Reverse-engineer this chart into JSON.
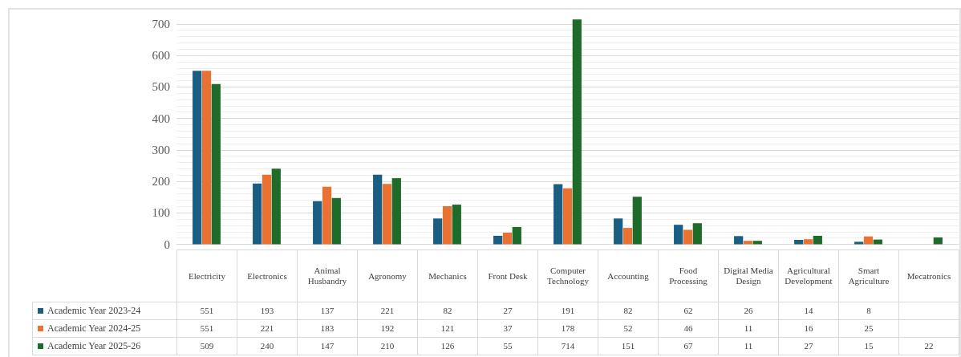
{
  "chart_data": {
    "type": "bar",
    "categories": [
      "Electricity",
      "Electronics",
      "Animal Husbandry",
      "Agronomy",
      "Mechanics",
      "Front Desk",
      "Computer Technology",
      "Accounting",
      "Food Processing",
      "Digital Media Design",
      "Agricultural Development",
      "Smart Agriculture",
      "Mecatronics"
    ],
    "series": [
      {
        "name": "Academic Year 2023-24",
        "color": "#1b5e84",
        "values": [
          551,
          193,
          137,
          221,
          82,
          27,
          191,
          82,
          62,
          26,
          14,
          8,
          null
        ]
      },
      {
        "name": "Academic Year 2024-25",
        "color": "#e97132",
        "values": [
          551,
          221,
          183,
          192,
          121,
          37,
          178,
          52,
          46,
          11,
          16,
          25,
          null
        ]
      },
      {
        "name": "Academic Year 2025-26",
        "color": "#1e6b2a",
        "values": [
          509,
          240,
          147,
          210,
          126,
          55,
          714,
          151,
          67,
          11,
          27,
          15,
          22
        ]
      }
    ],
    "ylim": [
      0,
      720
    ],
    "yticks": [
      0,
      100,
      200,
      300,
      400,
      500,
      600,
      700
    ],
    "grid": true,
    "legend": "bottom left",
    "data_labels": true
  }
}
